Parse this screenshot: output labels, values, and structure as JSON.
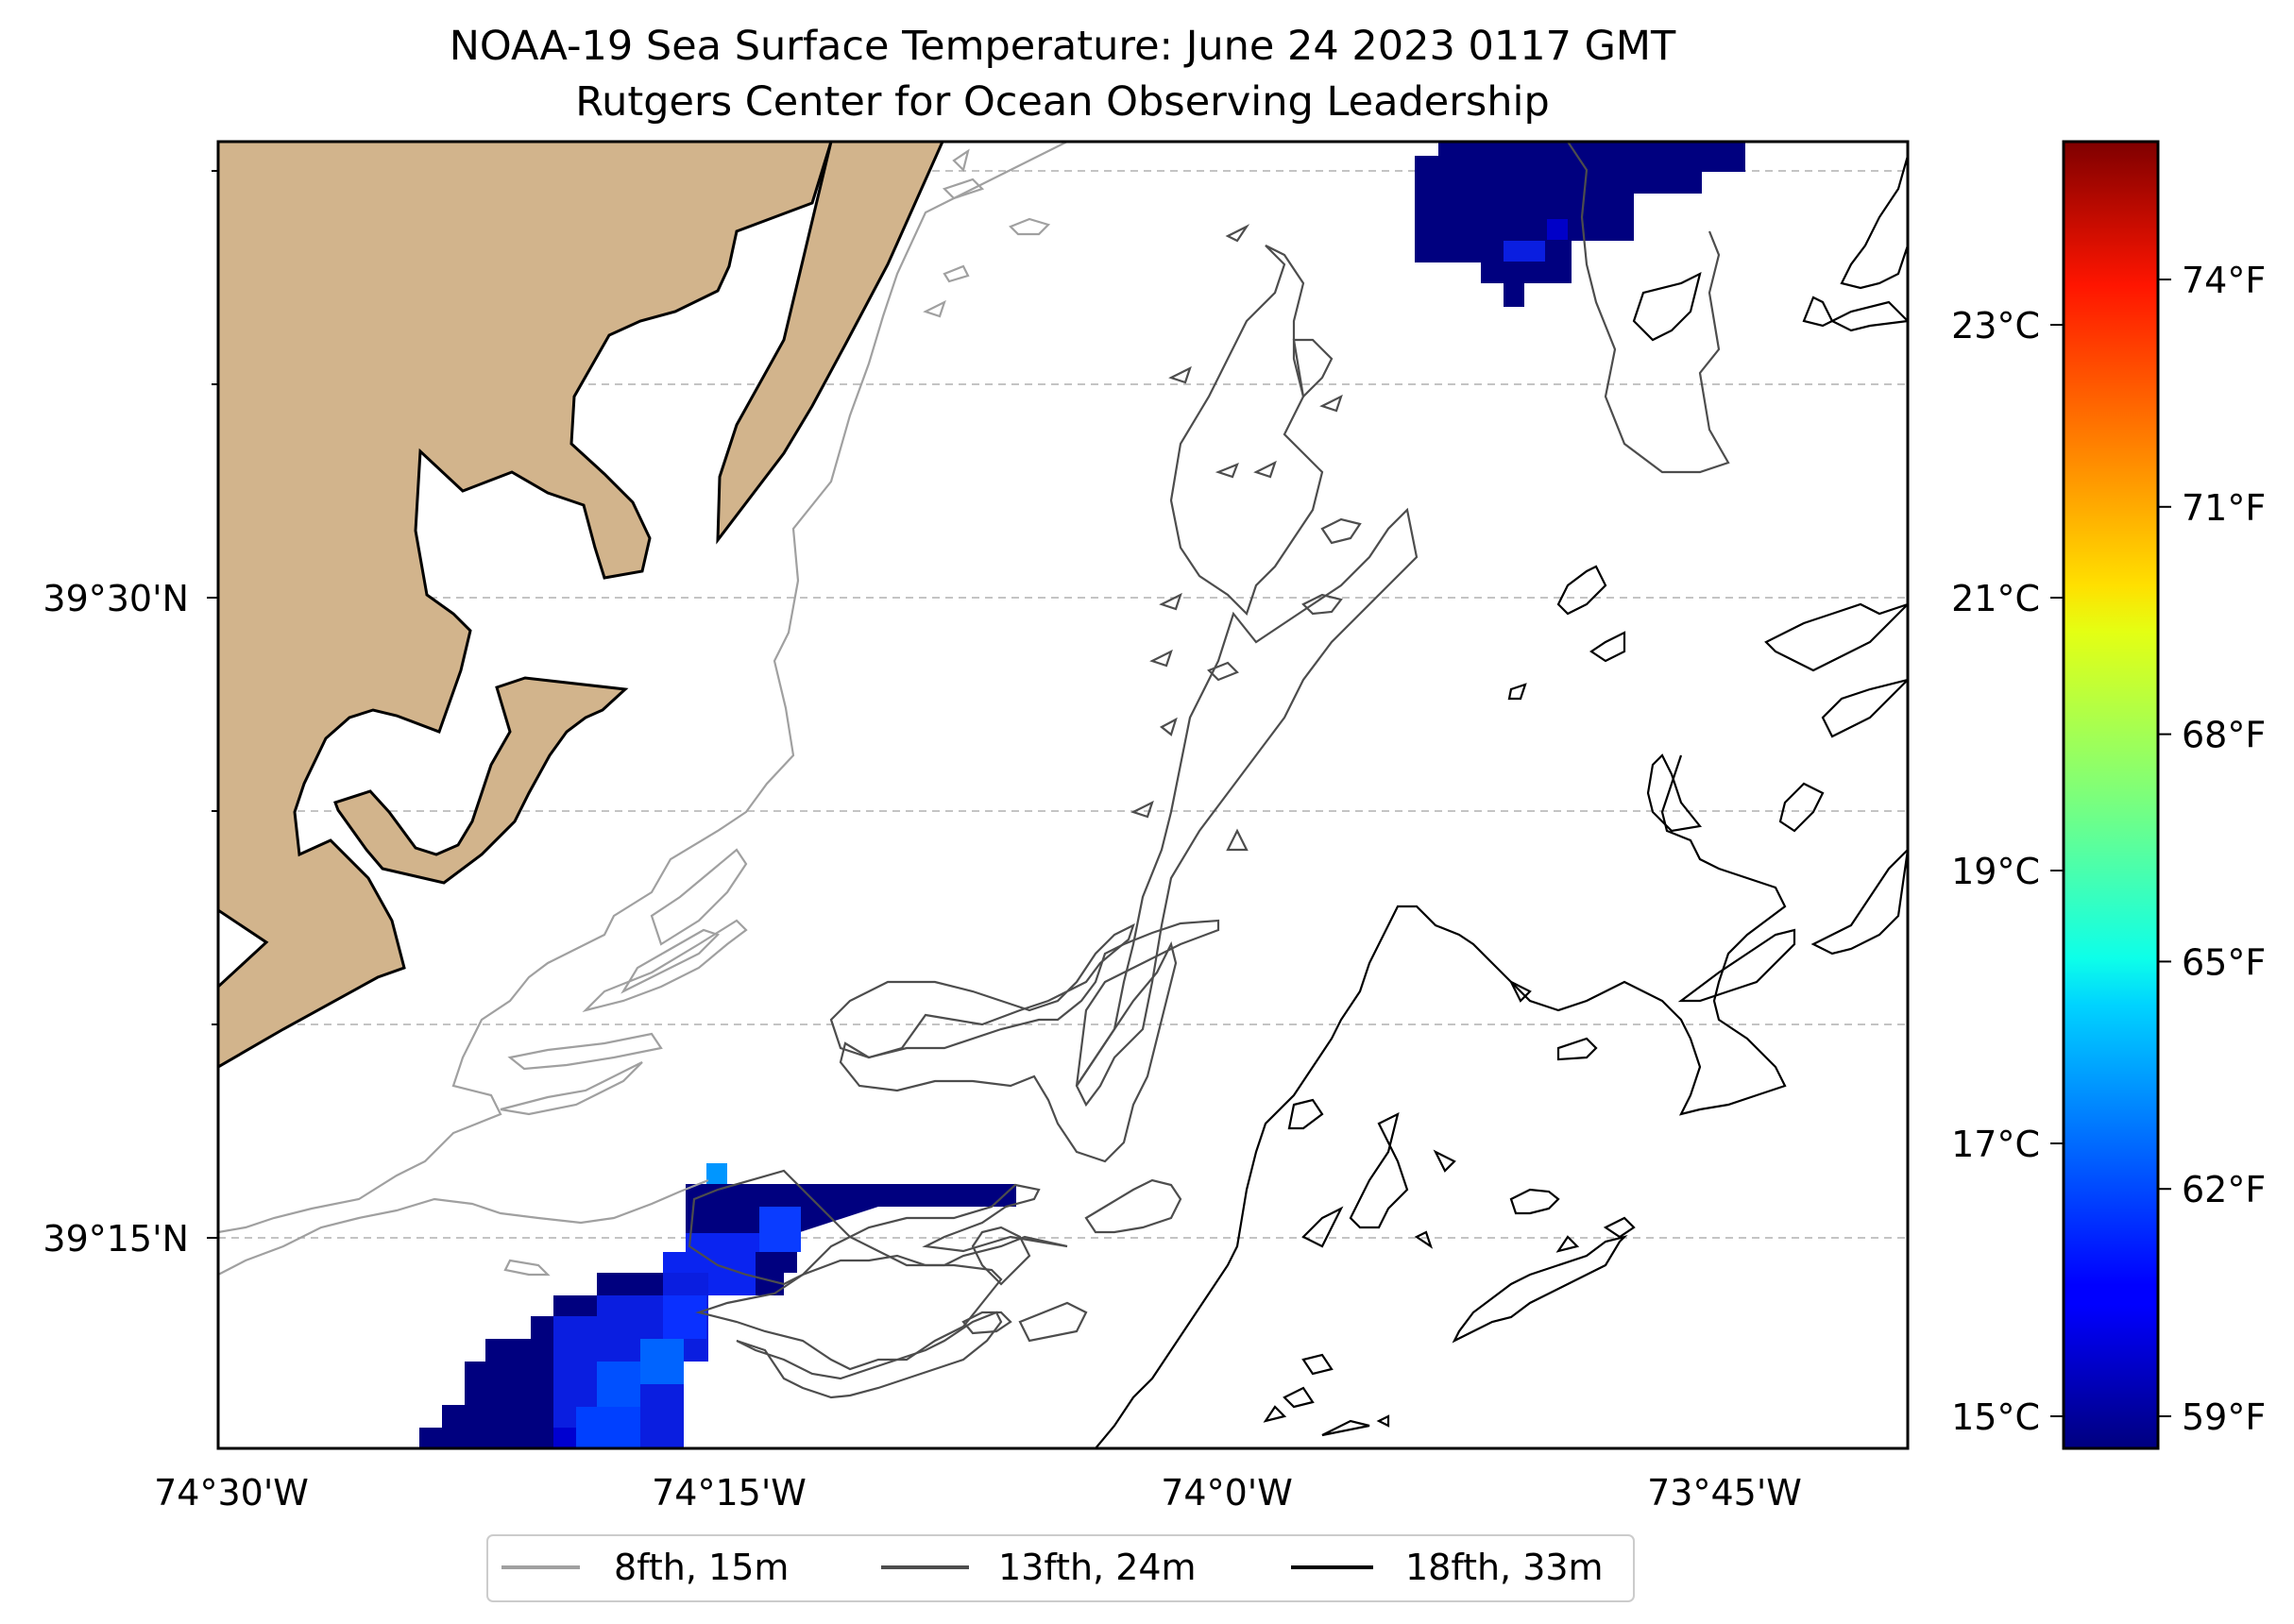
{
  "title": {
    "line1": "NOAA-19 Sea Surface Temperature: June 24 2023 0117 GMT",
    "line2": "Rutgers Center for Ocean Observing Leadership"
  },
  "map": {
    "lon_ticks": [
      {
        "label": "74°30'W",
        "lon": -74.5
      },
      {
        "label": "74°15'W",
        "lon": -74.25
      },
      {
        "label": "74°0'W",
        "lon": -74.0
      },
      {
        "label": "73°45'W",
        "lon": -73.75
      }
    ],
    "lat_ticks": [
      {
        "label": "39°30'N",
        "lat": 39.5
      },
      {
        "label": "39°15'N",
        "lat": 39.25
      }
    ],
    "land_color": "#d2b48c"
  },
  "legend": {
    "items": [
      {
        "label": "8fth, 15m",
        "color": "#a0a0a0"
      },
      {
        "label": "13fth, 24m",
        "color": "#4d4d4d"
      },
      {
        "label": "18fth, 33m",
        "color": "#000000"
      }
    ]
  },
  "colorbar": {
    "colormap": "jet",
    "celsius_ticks": [
      "15°C",
      "17°C",
      "19°C",
      "21°C",
      "23°C"
    ],
    "fahrenheit_ticks": [
      "59°F",
      "62°F",
      "65°F",
      "68°F",
      "71°F",
      "74°F"
    ]
  }
}
